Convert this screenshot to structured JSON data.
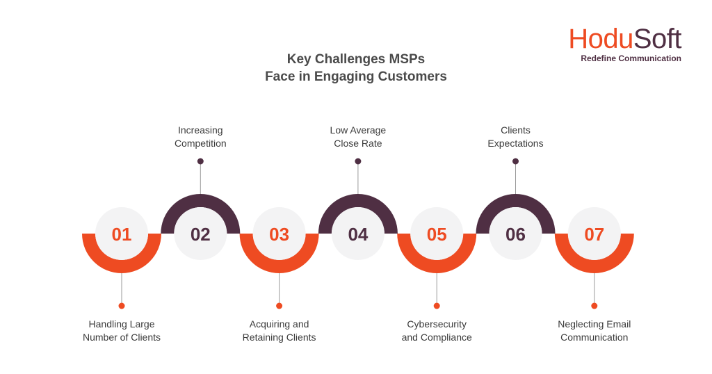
{
  "brand": {
    "name_part1": "Hodu",
    "name_part2": "Soft",
    "tagline": "Redefine Communication",
    "color_primary": "#ee4b22",
    "color_secondary": "#4f2f43"
  },
  "title": {
    "line1": "Key Challenges MSPs",
    "line2": "Face in Engaging Customers"
  },
  "steps": [
    {
      "number": "01",
      "label_line1": "Handling Large",
      "label_line2": "Number of Clients",
      "color": "#ee4b22",
      "position": "bottom"
    },
    {
      "number": "02",
      "label_line1": "Increasing",
      "label_line2": "Competition",
      "color": "#4f2f43",
      "position": "top"
    },
    {
      "number": "03",
      "label_line1": "Acquiring and",
      "label_line2": "Retaining Clients",
      "color": "#ee4b22",
      "position": "bottom"
    },
    {
      "number": "04",
      "label_line1": "Low Average",
      "label_line2": "Close Rate",
      "color": "#4f2f43",
      "position": "top"
    },
    {
      "number": "05",
      "label_line1": "Cybersecurity",
      "label_line2": "and Compliance",
      "color": "#ee4b22",
      "position": "bottom"
    },
    {
      "number": "06",
      "label_line1": "Clients",
      "label_line2": "Expectations",
      "color": "#4f2f43",
      "position": "top"
    },
    {
      "number": "07",
      "label_line1": "Neglecting Email",
      "label_line2": "Communication",
      "color": "#ee4b22",
      "position": "bottom"
    }
  ]
}
